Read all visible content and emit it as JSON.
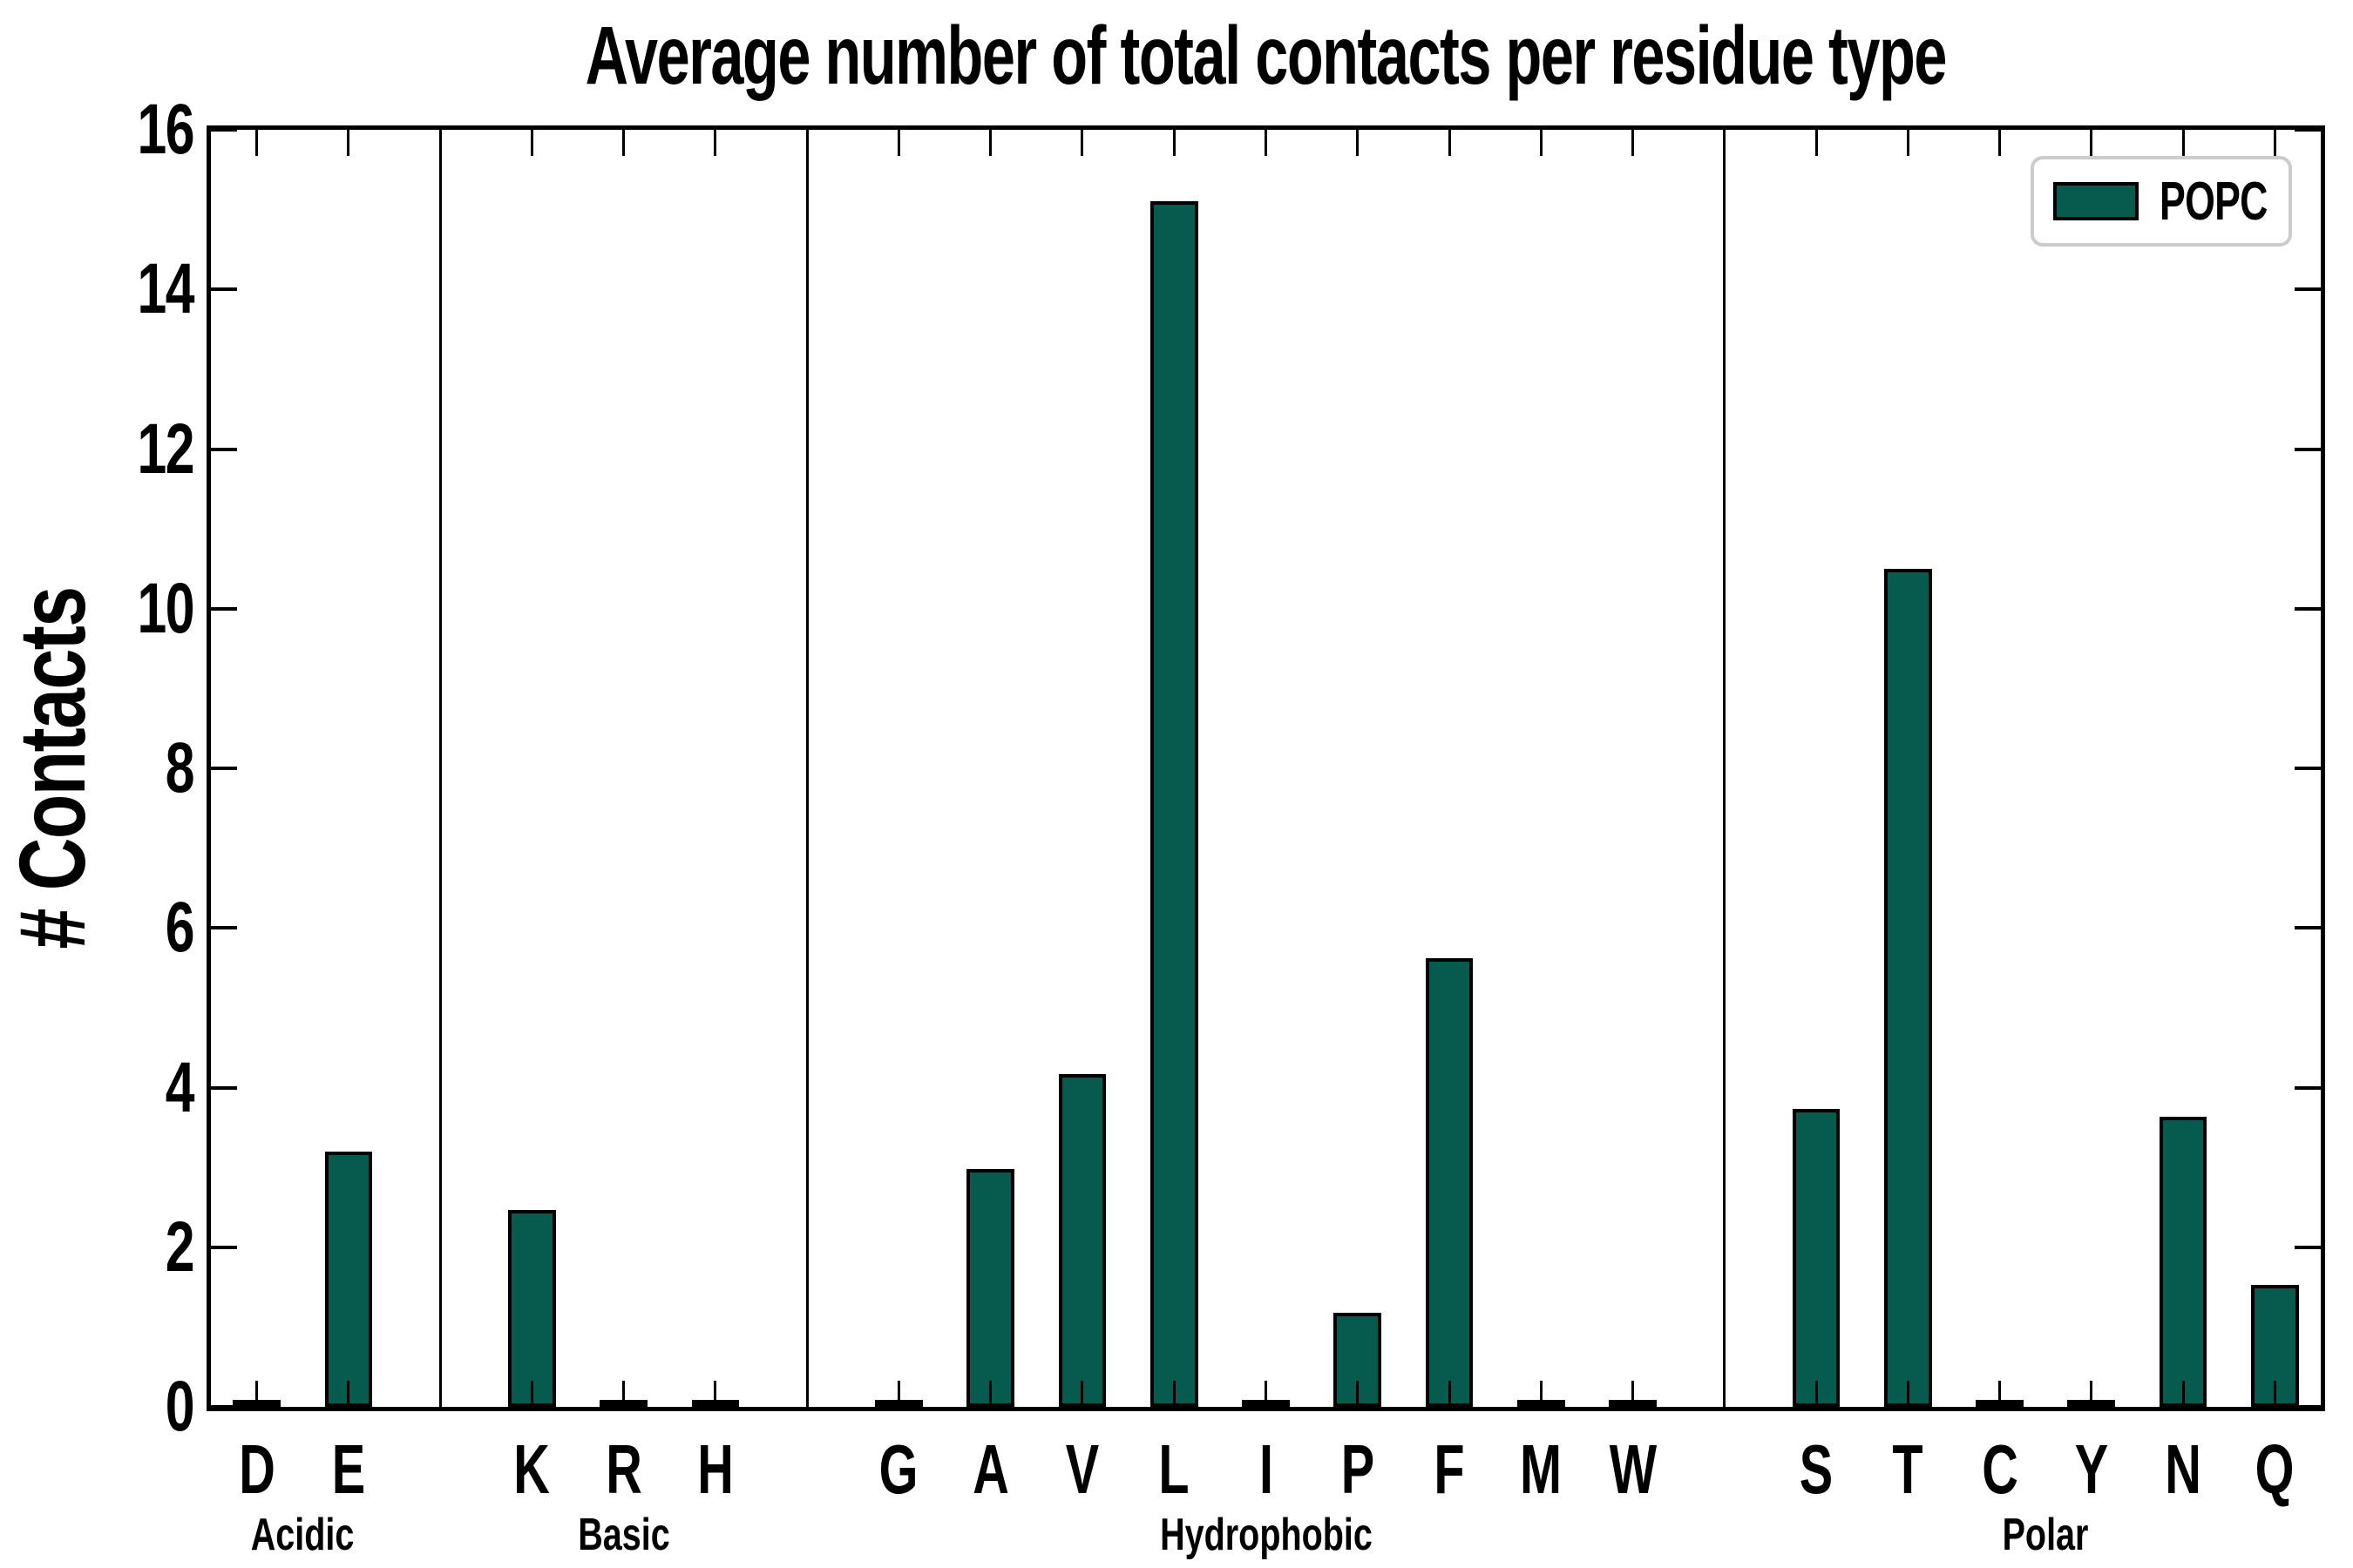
{
  "title": "Average number of total contacts per residue type",
  "ylabel": "# Contacts",
  "legend": {
    "label": "POPC",
    "swatch_color": "#075a4e",
    "border_color": "#cccccc"
  },
  "colors": {
    "bar_fill": "#075a4e",
    "bar_edge": "#000000",
    "axis": "#000000",
    "separator": "#000000",
    "background": "#ffffff"
  },
  "chart_data": {
    "type": "bar",
    "title": "Average number of total contacts per residue type",
    "xlabel": "",
    "ylabel": "# Contacts",
    "ylim": [
      0,
      16
    ],
    "yticks": [
      0,
      2,
      4,
      6,
      8,
      10,
      12,
      14,
      16
    ],
    "grid": false,
    "legend_entries": [
      "POPC"
    ],
    "legend_position": "upper right",
    "series_name": "POPC",
    "groups": [
      {
        "label": "Acidic",
        "categories": [
          "D",
          "E"
        ],
        "values": [
          0.02,
          3.2
        ]
      },
      {
        "label": "Basic",
        "categories": [
          "K",
          "R",
          "H"
        ],
        "values": [
          2.47,
          0.02,
          0.02
        ]
      },
      {
        "label": "Hydrophobic",
        "categories": [
          "G",
          "A",
          "V",
          "L",
          "I",
          "P",
          "F",
          "M",
          "W"
        ],
        "values": [
          0.02,
          2.98,
          4.17,
          15.1,
          0.02,
          1.18,
          5.62,
          0.02,
          0.02
        ]
      },
      {
        "label": "Polar",
        "categories": [
          "S",
          "T",
          "C",
          "Y",
          "N",
          "Q"
        ],
        "values": [
          3.73,
          10.5,
          0.02,
          0.02,
          3.63,
          1.53
        ]
      }
    ]
  }
}
